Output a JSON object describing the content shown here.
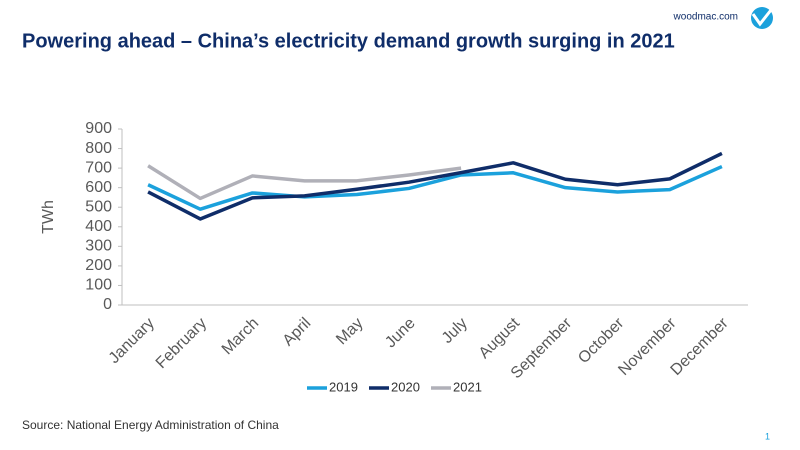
{
  "brand": "woodmac.com",
  "page_number": "1",
  "chart_data": {
    "type": "line",
    "title": "Powering ahead – China’s electricity demand growth surging in 2021",
    "ylabel": "TWh",
    "source": "Source: National Energy Administration of China",
    "categories": [
      "January",
      "February",
      "March",
      "April",
      "May",
      "June",
      "July",
      "August",
      "September",
      "October",
      "November",
      "December"
    ],
    "series": [
      {
        "name": "2019",
        "color": "#1ba1dc",
        "values": [
          615,
          490,
          573,
          553,
          565,
          596,
          665,
          676,
          600,
          578,
          590,
          708
        ]
      },
      {
        "name": "2020",
        "color": "#0f2d69",
        "values": [
          578,
          440,
          548,
          558,
          592,
          628,
          677,
          727,
          643,
          615,
          645,
          775
        ]
      },
      {
        "name": "2021",
        "color": "#b0b0b8",
        "values": [
          712,
          545,
          660,
          635,
          635,
          665,
          700,
          null,
          null,
          null,
          null,
          null
        ]
      }
    ],
    "ylim": [
      0,
      900
    ],
    "yticks": [
      0,
      100,
      200,
      300,
      400,
      500,
      600,
      700,
      800,
      900
    ],
    "grid": false,
    "legend": "bottom"
  }
}
